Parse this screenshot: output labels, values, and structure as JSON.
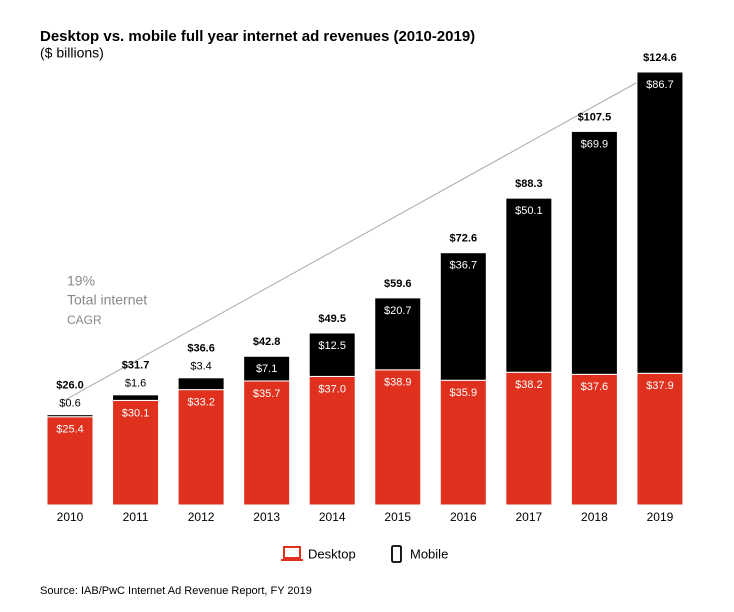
{
  "chart_data": {
    "type": "stacked-bar",
    "title": "Desktop vs. mobile full year internet ad revenues (2010-2019)",
    "subtitle": "($ billions)",
    "categories": [
      "2010",
      "2011",
      "2012",
      "2013",
      "2014",
      "2015",
      "2016",
      "2017",
      "2018",
      "2019"
    ],
    "series": [
      {
        "name": "Desktop",
        "color": "#e0301e",
        "values": [
          25.4,
          30.1,
          33.2,
          35.7,
          37.0,
          38.9,
          35.9,
          38.2,
          37.6,
          37.9
        ],
        "value_labels": [
          "$25.4",
          "$30.1",
          "$33.2",
          "$35.7",
          "$37.0",
          "$38.9",
          "$35.9",
          "$38.2",
          "$37.6",
          "$37.9"
        ]
      },
      {
        "name": "Mobile",
        "color": "#000000",
        "values": [
          0.6,
          1.6,
          3.4,
          7.1,
          12.5,
          20.7,
          36.7,
          50.1,
          69.9,
          86.7
        ],
        "value_labels": [
          "$0.6",
          "$1.6",
          "$3.4",
          "$7.1",
          "$12.5",
          "$20.7",
          "$36.7",
          "$50.1",
          "$69.9",
          "$86.7"
        ]
      }
    ],
    "totals": {
      "values": [
        26.0,
        31.7,
        36.6,
        42.8,
        49.5,
        59.6,
        72.6,
        88.3,
        107.5,
        124.6
      ],
      "value_labels": [
        "$26.0",
        "$31.7",
        "$36.6",
        "$42.8",
        "$49.5",
        "$59.6",
        "$72.6",
        "$88.3",
        "$107.5",
        "$124.6"
      ]
    },
    "annotation": [
      "19%",
      "Total internet",
      "CAGR"
    ],
    "source": "Source: IAB/PwC Internet Ad Revenue Report, FY 2019"
  }
}
